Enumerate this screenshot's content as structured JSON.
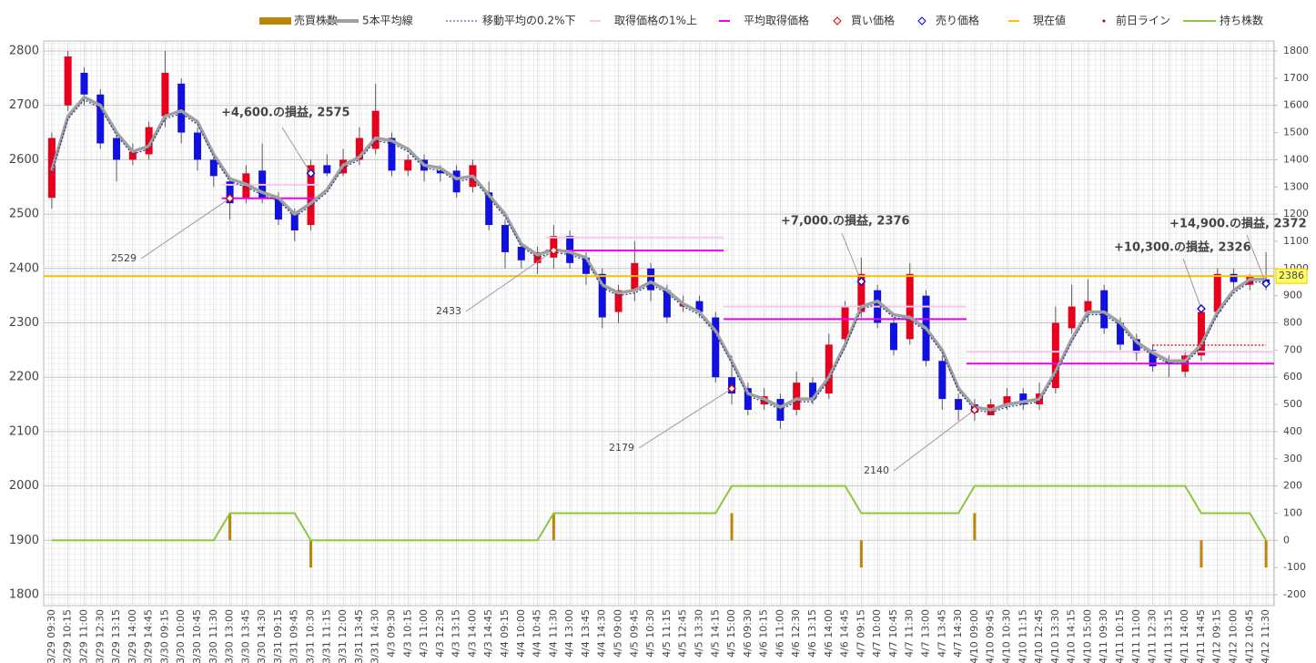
{
  "chart_data": {
    "type": "candlestick",
    "categories": [
      "3/29 09:30",
      "3/29 10:15",
      "3/29 11:00",
      "3/29 12:30",
      "3/29 13:15",
      "3/29 14:00",
      "3/29 14:45",
      "3/30 09:15",
      "3/30 10:00",
      "3/30 10:45",
      "3/30 11:30",
      "3/30 13:00",
      "3/30 13:45",
      "3/30 14:30",
      "3/31 09:15",
      "3/31 09:45",
      "3/31 10:30",
      "3/31 11:15",
      "3/31 12:00",
      "3/31 13:45",
      "3/31 14:30",
      "4/3 09:30",
      "4/3 10:15",
      "4/3 11:00",
      "4/3 12:30",
      "4/3 13:15",
      "4/3 14:00",
      "4/3 14:45",
      "4/4 09:15",
      "4/4 10:00",
      "4/4 10:45",
      "4/4 11:30",
      "4/4 13:00",
      "4/4 13:45",
      "4/4 14:30",
      "4/5 09:00",
      "4/5 09:45",
      "4/5 10:30",
      "4/5 11:15",
      "4/5 12:45",
      "4/5 13:30",
      "4/5 14:15",
      "4/5 15:00",
      "4/6 09:30",
      "4/6 10:15",
      "4/6 11:00",
      "4/6 12:30",
      "4/6 13:15",
      "4/6 14:00",
      "4/6 14:45",
      "4/7 09:15",
      "4/7 10:00",
      "4/7 10:45",
      "4/7 11:30",
      "4/7 13:00",
      "4/7 13:45",
      "4/7 14:30",
      "4/10 09:00",
      "4/10 09:45",
      "4/10 10:30",
      "4/10 11:15",
      "4/10 12:45",
      "4/10 13:30",
      "4/10 14:15",
      "4/10 15:00",
      "4/11 09:30",
      "4/11 10:15",
      "4/11 11:00",
      "4/11 12:30",
      "4/11 13:15",
      "4/11 14:00",
      "4/11 14:45",
      "4/12 09:15",
      "4/12 10:00",
      "4/12 10:45",
      "4/12 11:30"
    ],
    "open": [
      2530,
      2700,
      2760,
      2720,
      2640,
      2600,
      2610,
      2680,
      2740,
      2650,
      2600,
      2560,
      2530,
      2580,
      2530,
      2500,
      2480,
      2590,
      2575,
      2600,
      2620,
      2640,
      2580,
      2600,
      2580,
      2580,
      2550,
      2540,
      2480,
      2440,
      2410,
      2420,
      2460,
      2420,
      2390,
      2320,
      2360,
      2400,
      2360,
      2330,
      2340,
      2310,
      2200,
      2180,
      2150,
      2160,
      2140,
      2190,
      2170,
      2270,
      2320,
      2360,
      2300,
      2270,
      2350,
      2230,
      2160,
      2150,
      2130,
      2150,
      2170,
      2150,
      2180,
      2290,
      2320,
      2360,
      2300,
      2270,
      2250,
      2230,
      2210,
      2240,
      2320,
      2390,
      2370,
      2380
    ],
    "high": [
      2650,
      2800,
      2770,
      2730,
      2650,
      2630,
      2670,
      2800,
      2750,
      2660,
      2610,
      2570,
      2590,
      2630,
      2540,
      2510,
      2600,
      2610,
      2620,
      2660,
      2740,
      2650,
      2610,
      2610,
      2590,
      2590,
      2600,
      2560,
      2490,
      2450,
      2440,
      2480,
      2470,
      2430,
      2400,
      2370,
      2450,
      2410,
      2370,
      2350,
      2350,
      2320,
      2240,
      2190,
      2180,
      2170,
      2210,
      2200,
      2280,
      2340,
      2420,
      2370,
      2310,
      2410,
      2360,
      2240,
      2170,
      2160,
      2160,
      2180,
      2180,
      2190,
      2330,
      2370,
      2380,
      2370,
      2310,
      2280,
      2260,
      2240,
      2250,
      2330,
      2400,
      2400,
      2390,
      2430
    ],
    "low": [
      2510,
      2690,
      2700,
      2620,
      2560,
      2590,
      2600,
      2660,
      2630,
      2580,
      2550,
      2490,
      2520,
      2520,
      2480,
      2450,
      2470,
      2570,
      2570,
      2590,
      2610,
      2570,
      2570,
      2560,
      2560,
      2530,
      2540,
      2470,
      2400,
      2400,
      2390,
      2400,
      2400,
      2370,
      2290,
      2300,
      2340,
      2340,
      2300,
      2320,
      2310,
      2190,
      2150,
      2130,
      2140,
      2105,
      2130,
      2150,
      2160,
      2260,
      2310,
      2290,
      2240,
      2260,
      2220,
      2140,
      2120,
      2120,
      2130,
      2140,
      2140,
      2140,
      2170,
      2280,
      2300,
      2280,
      2250,
      2230,
      2210,
      2200,
      2200,
      2230,
      2310,
      2360,
      2360,
      2360
    ],
    "close": [
      2640,
      2790,
      2720,
      2630,
      2600,
      2615,
      2660,
      2760,
      2650,
      2600,
      2570,
      2520,
      2575,
      2530,
      2490,
      2470,
      2590,
      2575,
      2600,
      2640,
      2690,
      2580,
      2600,
      2580,
      2575,
      2540,
      2590,
      2480,
      2430,
      2415,
      2430,
      2460,
      2410,
      2390,
      2310,
      2360,
      2410,
      2360,
      2310,
      2335,
      2320,
      2200,
      2170,
      2140,
      2165,
      2120,
      2190,
      2160,
      2260,
      2330,
      2390,
      2300,
      2250,
      2390,
      2230,
      2160,
      2140,
      2135,
      2150,
      2165,
      2150,
      2170,
      2300,
      2330,
      2340,
      2290,
      2260,
      2245,
      2220,
      2225,
      2240,
      2320,
      2390,
      2375,
      2385,
      2375
    ],
    "up_color": "#e8001c",
    "down_color": "#1010e0",
    "ylim": [
      1800,
      2800
    ],
    "yticks": [
      1800,
      1900,
      2000,
      2100,
      2200,
      2300,
      2400,
      2500,
      2600,
      2700,
      2800
    ],
    "y2lim": [
      -200,
      1800
    ],
    "y2ticks": [
      -200,
      -100,
      0,
      100,
      200,
      300,
      400,
      500,
      600,
      700,
      800,
      900,
      1000,
      1100,
      1200,
      1300,
      1400,
      1500,
      1600,
      1700,
      1800
    ],
    "series": [
      {
        "name": "売買株数",
        "kind": "bar",
        "axis": "y2",
        "color": "#b8860b",
        "values": [
          null,
          null,
          null,
          null,
          null,
          null,
          null,
          null,
          null,
          null,
          null,
          100,
          null,
          null,
          null,
          null,
          -100,
          null,
          null,
          null,
          null,
          null,
          null,
          null,
          null,
          null,
          null,
          null,
          null,
          null,
          null,
          100,
          null,
          null,
          null,
          null,
          null,
          null,
          null,
          null,
          null,
          null,
          100,
          null,
          null,
          null,
          null,
          null,
          null,
          null,
          -100,
          null,
          null,
          null,
          null,
          null,
          null,
          100,
          null,
          null,
          null,
          null,
          null,
          null,
          null,
          null,
          null,
          null,
          null,
          null,
          null,
          -100,
          null,
          null,
          null,
          -100
        ]
      },
      {
        "name": "5本平均線",
        "kind": "line",
        "color": "#a0a0a0",
        "values": [
          2580,
          2680,
          2715,
          2700,
          2650,
          2615,
          2625,
          2680,
          2690,
          2670,
          2610,
          2565,
          2555,
          2540,
          2530,
          2500,
          2520,
          2545,
          2590,
          2605,
          2640,
          2635,
          2620,
          2590,
          2585,
          2565,
          2570,
          2535,
          2500,
          2445,
          2425,
          2435,
          2430,
          2420,
          2370,
          2355,
          2360,
          2375,
          2360,
          2335,
          2320,
          2285,
          2230,
          2170,
          2160,
          2145,
          2160,
          2160,
          2200,
          2260,
          2330,
          2340,
          2315,
          2310,
          2290,
          2250,
          2180,
          2145,
          2140,
          2150,
          2155,
          2160,
          2210,
          2270,
          2320,
          2320,
          2300,
          2265,
          2245,
          2230,
          2230,
          2260,
          2320,
          2360,
          2380,
          2380
        ]
      },
      {
        "name": "移動平均の0.2%下",
        "kind": "dotted",
        "color": "#1f3a93",
        "values": [
          2575,
          2675,
          2710,
          2695,
          2645,
          2610,
          2620,
          2675,
          2685,
          2665,
          2605,
          2560,
          2550,
          2535,
          2525,
          2495,
          2515,
          2540,
          2585,
          2600,
          2635,
          2630,
          2615,
          2585,
          2580,
          2560,
          2565,
          2530,
          2495,
          2440,
          2420,
          2430,
          2425,
          2415,
          2365,
          2350,
          2355,
          2370,
          2355,
          2330,
          2315,
          2280,
          2225,
          2165,
          2155,
          2140,
          2155,
          2155,
          2195,
          2255,
          2325,
          2335,
          2310,
          2305,
          2285,
          2245,
          2175,
          2140,
          2135,
          2145,
          2150,
          2155,
          2205,
          2265,
          2315,
          2315,
          2295,
          2260,
          2240,
          2225,
          2225,
          2255,
          2315,
          2355,
          2375,
          2375
        ]
      },
      {
        "name": "取得価格の1%上",
        "kind": "level",
        "color": "#f8c8f0",
        "values": [
          null,
          null,
          null,
          null,
          null,
          null,
          null,
          null,
          null,
          null,
          null,
          2554,
          2554,
          2554,
          2554,
          2554,
          2554,
          null,
          null,
          null,
          null,
          null,
          null,
          null,
          null,
          null,
          null,
          null,
          null,
          null,
          null,
          2457,
          2457,
          2457,
          2457,
          2457,
          2457,
          2457,
          2457,
          2457,
          2457,
          2457,
          2330,
          2330,
          2330,
          2330,
          2330,
          2330,
          2330,
          2330,
          2330,
          2330,
          2330,
          2330,
          2330,
          2330,
          2330,
          2247,
          2247,
          2247,
          2247,
          2247,
          2247,
          2247,
          2247,
          2247,
          2247,
          2247,
          2247,
          2247,
          2247,
          2247,
          2247,
          2247,
          2247,
          2247
        ]
      },
      {
        "name": "平均取得価格",
        "kind": "level",
        "color": "#ee00ee",
        "values": [
          null,
          null,
          null,
          null,
          null,
          null,
          null,
          null,
          null,
          null,
          null,
          2529,
          2529,
          2529,
          2529,
          2529,
          2529,
          null,
          null,
          null,
          null,
          null,
          null,
          null,
          null,
          null,
          null,
          null,
          null,
          null,
          null,
          2433,
          2433,
          2433,
          2433,
          2433,
          2433,
          2433,
          2433,
          2433,
          2433,
          2433,
          2307,
          2307,
          2307,
          2307,
          2307,
          2307,
          2307,
          2307,
          2307,
          2307,
          2307,
          2307,
          2307,
          2307,
          2307,
          2225,
          2225,
          2225,
          2225,
          2225,
          2225,
          2225,
          2225,
          2225,
          2225,
          2225,
          2225,
          2225,
          2225,
          2225,
          2225,
          2225,
          2225,
          2225
        ]
      },
      {
        "name": "買い価格",
        "kind": "marker",
        "color": "#e00000",
        "values": [
          null,
          null,
          null,
          null,
          null,
          null,
          null,
          null,
          null,
          null,
          null,
          2529,
          null,
          null,
          null,
          null,
          null,
          null,
          null,
          null,
          null,
          null,
          null,
          null,
          null,
          null,
          null,
          null,
          null,
          null,
          null,
          2433,
          null,
          null,
          null,
          null,
          null,
          null,
          null,
          null,
          null,
          null,
          2179,
          null,
          null,
          null,
          null,
          null,
          null,
          null,
          null,
          null,
          null,
          null,
          null,
          null,
          null,
          2140,
          null,
          null,
          null,
          null,
          null,
          null,
          null,
          null,
          null,
          null,
          null,
          null,
          null,
          null,
          null,
          null,
          null,
          null
        ]
      },
      {
        "name": "売り価格",
        "kind": "marker",
        "color": "#0000e0",
        "values": [
          null,
          null,
          null,
          null,
          null,
          null,
          null,
          null,
          null,
          null,
          null,
          null,
          null,
          null,
          null,
          null,
          2575,
          null,
          null,
          null,
          null,
          null,
          null,
          null,
          null,
          null,
          null,
          null,
          null,
          null,
          null,
          null,
          null,
          null,
          null,
          null,
          null,
          null,
          null,
          null,
          null,
          null,
          null,
          null,
          null,
          null,
          null,
          null,
          null,
          null,
          2376,
          null,
          null,
          null,
          null,
          null,
          null,
          null,
          null,
          null,
          null,
          null,
          null,
          null,
          null,
          null,
          null,
          null,
          null,
          null,
          null,
          2326,
          null,
          null,
          null,
          2372
        ],
        "value_labels": [
          null,
          null,
          null,
          null,
          null,
          null,
          null,
          null,
          null,
          null,
          null,
          null,
          null,
          null,
          null,
          null,
          "+4,600.の損益, 2575",
          null,
          null,
          null,
          null,
          null,
          null,
          null,
          null,
          null,
          null,
          null,
          null,
          null,
          null,
          null,
          null,
          null,
          null,
          null,
          null,
          null,
          null,
          null,
          null,
          null,
          null,
          null,
          null,
          null,
          null,
          null,
          null,
          null,
          "+7,000.の損益, 2376",
          null,
          null,
          null,
          null,
          null,
          null,
          null,
          null,
          null,
          null,
          null,
          null,
          null,
          null,
          null,
          null,
          null,
          null,
          null,
          null,
          "+10,300.の損益, 2326",
          null,
          null,
          null,
          "+14,900.の損益, 2372"
        ]
      },
      {
        "name": "現在値",
        "kind": "hline",
        "color": "#ffc000",
        "value": 2386
      },
      {
        "name": "前日ライン",
        "kind": "dotted",
        "color": "#c00000",
        "values": [
          null,
          null,
          null,
          null,
          null,
          null,
          null,
          null,
          null,
          null,
          null,
          null,
          null,
          null,
          null,
          null,
          null,
          null,
          null,
          null,
          null,
          null,
          null,
          null,
          null,
          null,
          null,
          null,
          null,
          null,
          null,
          null,
          null,
          null,
          null,
          null,
          null,
          null,
          null,
          null,
          null,
          null,
          null,
          null,
          null,
          null,
          null,
          null,
          null,
          null,
          null,
          null,
          null,
          null,
          null,
          null,
          null,
          null,
          null,
          null,
          null,
          null,
          null,
          null,
          null,
          null,
          null,
          null,
          2259,
          2259,
          2259,
          2259,
          2259,
          2259,
          2259,
          2259
        ]
      },
      {
        "name": "持ち株数",
        "kind": "step",
        "axis": "y2",
        "color": "#8dc63f",
        "values": [
          0,
          0,
          0,
          0,
          0,
          0,
          0,
          0,
          0,
          0,
          0,
          100,
          100,
          100,
          100,
          100,
          0,
          0,
          0,
          0,
          0,
          0,
          0,
          0,
          0,
          0,
          0,
          0,
          0,
          0,
          0,
          100,
          100,
          100,
          100,
          100,
          100,
          100,
          100,
          100,
          100,
          100,
          200,
          200,
          200,
          200,
          200,
          200,
          200,
          200,
          100,
          100,
          100,
          100,
          100,
          100,
          100,
          200,
          200,
          200,
          200,
          200,
          200,
          200,
          200,
          200,
          200,
          200,
          200,
          200,
          200,
          100,
          100,
          100,
          100,
          0
        ]
      }
    ],
    "grid": true
  }
}
